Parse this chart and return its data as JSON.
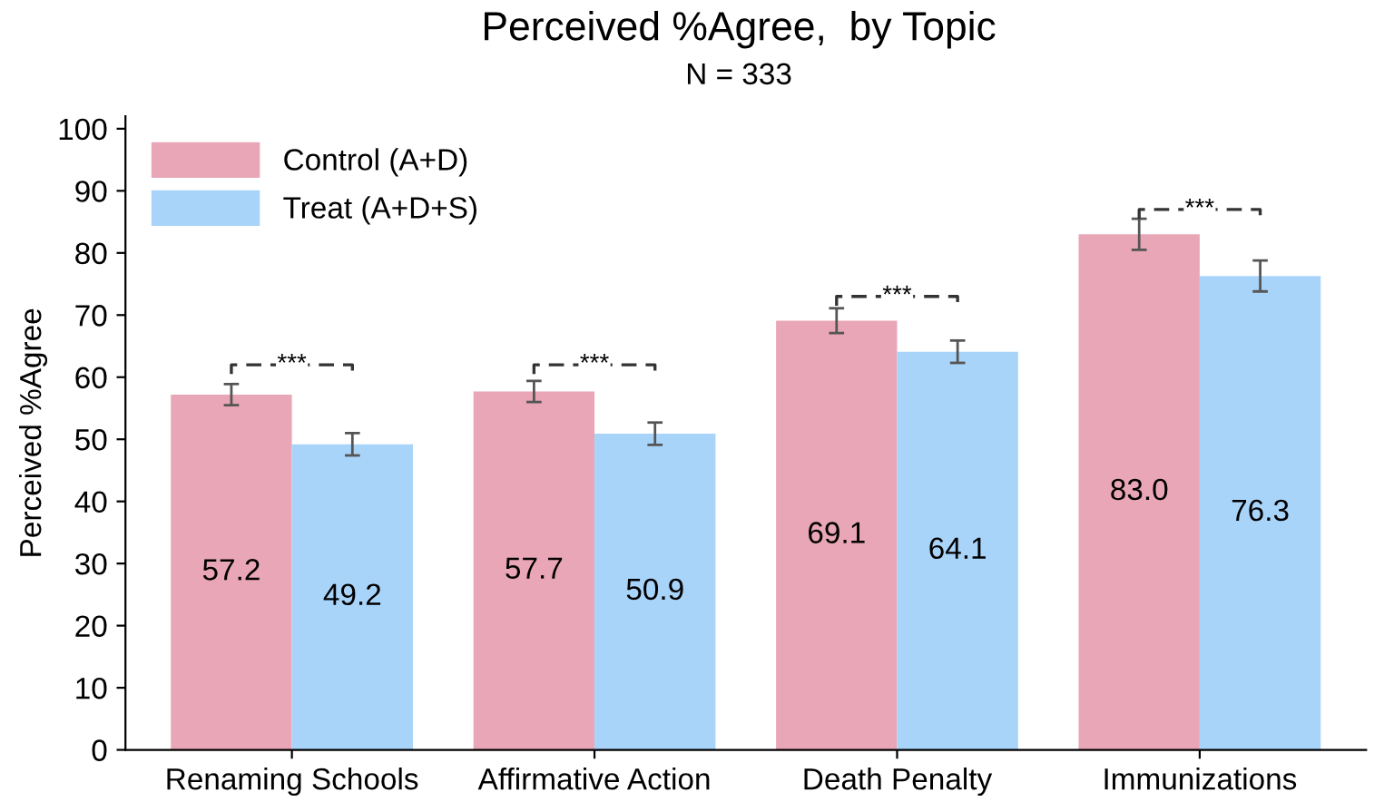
{
  "chart_data": {
    "type": "bar",
    "title": "Perceived %Agree,  by Topic",
    "subtitle": "N = 333",
    "ylabel": "Perceived %Agree",
    "categories": [
      "Renaming Schools",
      "Affirmative Action",
      "Death Penalty",
      "Immunizations"
    ],
    "series": [
      {
        "name": "Control (A+D)",
        "color": "#e9a6b6",
        "values": [
          57.2,
          57.7,
          69.1,
          83.0
        ],
        "value_labels": [
          "57.2",
          "57.7",
          "69.1",
          "83.0"
        ],
        "errors": [
          1.7,
          1.7,
          2.0,
          2.5
        ]
      },
      {
        "name": "Treat (A+D+S)",
        "color": "#a9d4fa",
        "values": [
          49.2,
          50.9,
          64.1,
          76.3
        ],
        "value_labels": [
          "49.2",
          "50.9",
          "64.1",
          "76.3"
        ],
        "errors": [
          1.8,
          1.8,
          1.8,
          2.5
        ]
      }
    ],
    "annotations": [
      {
        "text": "***",
        "x": "Renaming Schools",
        "y": 62
      },
      {
        "text": "***",
        "x": "Affirmative Action",
        "y": 62
      },
      {
        "text": "***",
        "x": "Death Penalty",
        "y": 73
      },
      {
        "text": "***",
        "x": "Immunizations",
        "y": 87
      }
    ],
    "ylim": [
      0,
      102
    ],
    "yticks": [
      0,
      10,
      20,
      30,
      40,
      50,
      60,
      70,
      80,
      90,
      100
    ],
    "grid": false,
    "legend": "top left"
  }
}
